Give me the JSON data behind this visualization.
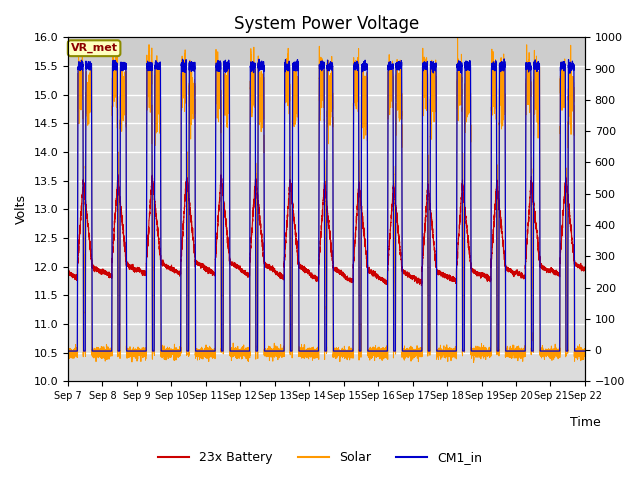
{
  "title": "System Power Voltage",
  "xlabel": "Time",
  "ylabel": "Volts",
  "ylim_left": [
    10.0,
    16.0
  ],
  "ylim_right": [
    -100,
    1000
  ],
  "yticks_left": [
    10.0,
    10.5,
    11.0,
    11.5,
    12.0,
    12.5,
    13.0,
    13.5,
    14.0,
    14.5,
    15.0,
    15.5,
    16.0
  ],
  "yticks_right": [
    -100,
    0,
    100,
    200,
    300,
    400,
    500,
    600,
    700,
    800,
    900,
    1000
  ],
  "xtick_labels": [
    "Sep 7",
    "Sep 8",
    "Sep 9",
    "Sep 10",
    "Sep 11",
    "Sep 12",
    "Sep 13",
    "Sep 14",
    "Sep 15",
    "Sep 16",
    "Sep 17",
    "Sep 18",
    "Sep 19",
    "Sep 20",
    "Sep 21",
    "Sep 22"
  ],
  "plot_bg_color": "#dcdcdc",
  "fig_bg_color": "#ffffff",
  "grid_color": "#ffffff",
  "title_fontsize": 12,
  "label_fontsize": 9,
  "tick_fontsize": 8,
  "legend_entries": [
    "23x Battery",
    "Solar",
    "CM1_in"
  ],
  "legend_colors": [
    "#cc0000",
    "#ff9900",
    "#0000cc"
  ],
  "vr_met_label": "VR_met",
  "line_colors": {
    "battery": "#cc0000",
    "solar": "#ff9900",
    "cm1": "#0000cc"
  }
}
